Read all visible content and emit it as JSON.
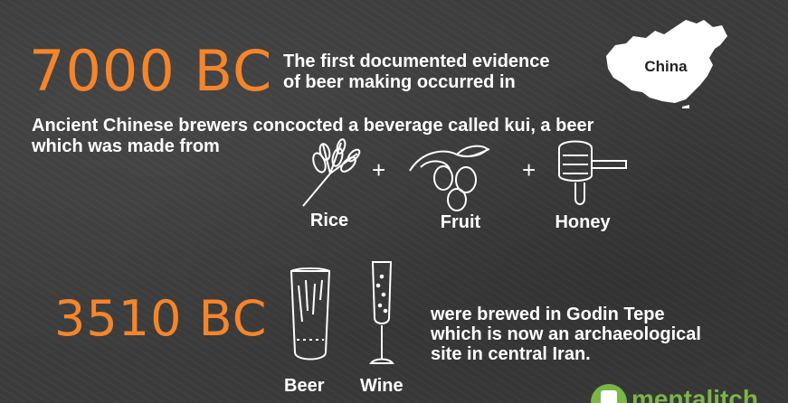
{
  "section1": {
    "year": "7000 BC",
    "evidence_line1": "The first documented evidence",
    "evidence_line2": "of beer making occurred in",
    "country": "China",
    "description_line1": "Ancient Chinese brewers concocted a beverage called kui, a beer",
    "description_line2": "which was made from",
    "ingredients": [
      {
        "label": "Rice",
        "icon": "wheat-icon"
      },
      {
        "label": "Fruit",
        "icon": "fruit-icon"
      },
      {
        "label": "Honey",
        "icon": "honey-icon"
      }
    ],
    "plus": "+"
  },
  "section2": {
    "year": "3510 BC",
    "drinks": [
      {
        "label": "Beer",
        "icon": "beer-glass-icon"
      },
      {
        "label": "Wine",
        "icon": "wine-glass-icon"
      }
    ],
    "text_line1": "were brewed in Godin Tepe",
    "text_line2": "which is now an archaeological",
    "text_line3": "site in central Iran."
  },
  "logo": {
    "text": "mentalitch",
    "colors": {
      "primary": "#7ab648"
    }
  },
  "colors": {
    "accent": "#f5852a",
    "background": "#3b3b3b",
    "text": "#ffffff"
  }
}
